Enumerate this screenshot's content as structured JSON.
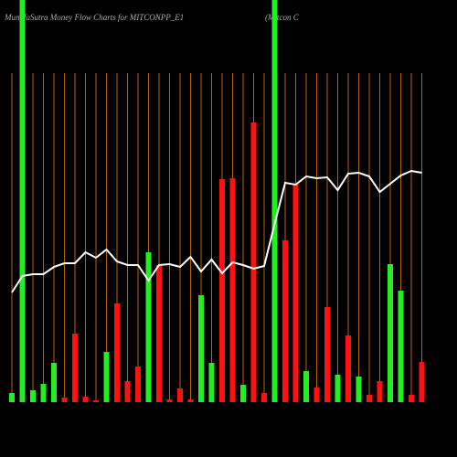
{
  "chart_data": {
    "type": "bar",
    "title": "MunafaSutra  Money Flow  Charts for MITCONPP_E1",
    "subtitle": "(Mitcon  C",
    "categories": [
      null,
      null,
      null,
      null,
      null,
      null,
      null,
      null,
      null,
      null,
      null,
      null,
      null,
      null,
      null,
      null,
      null,
      null,
      null,
      null,
      null,
      null,
      null,
      null,
      null,
      null,
      null,
      null,
      null,
      null,
      null,
      null,
      null,
      null,
      null,
      null,
      null,
      null,
      null,
      null
    ],
    "values": [
      10,
      440,
      13,
      20,
      43,
      5,
      75,
      6,
      2,
      55,
      108,
      23,
      39,
      164,
      150,
      3,
      15,
      3,
      117,
      43,
      244,
      245,
      19,
      306,
      10,
      440,
      177,
      239,
      34,
      16,
      104,
      30,
      73,
      28,
      8,
      23,
      151,
      122,
      8,
      44
    ],
    "colors": [
      "#22ee22",
      "#22ee22",
      "#22ee22",
      "#22ee22",
      "#22ee22",
      "#ff1111",
      "#ff1111",
      "#ff1111",
      "#ff1111",
      "#22ee22",
      "#ff1111",
      "#ff1111",
      "#ff1111",
      "#22ee22",
      "#ff1111",
      "#ff1111",
      "#ff1111",
      "#ff1111",
      "#22ee22",
      "#22ee22",
      "#ff1111",
      "#ff1111",
      "#22ee22",
      "#ff1111",
      "#ff1111",
      "#22ee22",
      "#ff1111",
      "#ff1111",
      "#22ee22",
      "#ff1111",
      "#ff1111",
      "#22ee22",
      "#ff1111",
      "#22ee22",
      "#ff1111",
      "#ff1111",
      "#22ee22",
      "#22ee22",
      "#ff1111",
      "#ff1111"
    ],
    "line_values": [
      120,
      138,
      140,
      140,
      148,
      152,
      152,
      164,
      158,
      167,
      154,
      150,
      150,
      133,
      150,
      151,
      148,
      159,
      143,
      156,
      141,
      153,
      150,
      146,
      149,
      195,
      240,
      238,
      247,
      245,
      246,
      232,
      250,
      251,
      247,
      230,
      239,
      248,
      253,
      251
    ],
    "line_color": "#ffffff",
    "grid_color": "#b8600b",
    "ylim": [
      0,
      440
    ]
  }
}
